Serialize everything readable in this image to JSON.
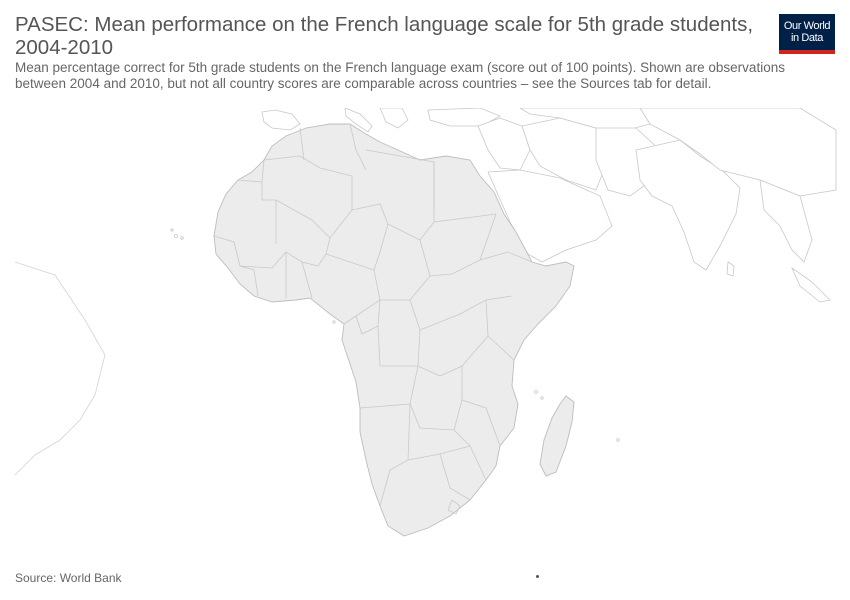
{
  "title": "PASEC: Mean performance on the French language scale for 5th grade students, 2004-2010",
  "subtitle": "Mean percentage correct for 5th grade students on the French language exam (score out of 100 points). Shown are observations between 2004 and 2010, but not all country scores are comparable across countries – see the Sources tab for detail.",
  "logo": {
    "line1": "Our World",
    "line2": "in Data"
  },
  "source": "Source: World Bank",
  "colors": {
    "land": "#ececec",
    "border": "#c8c8c8",
    "outline": "#bdbdbd",
    "logo_bg": "#002147",
    "logo_bar": "#ce261e"
  }
}
